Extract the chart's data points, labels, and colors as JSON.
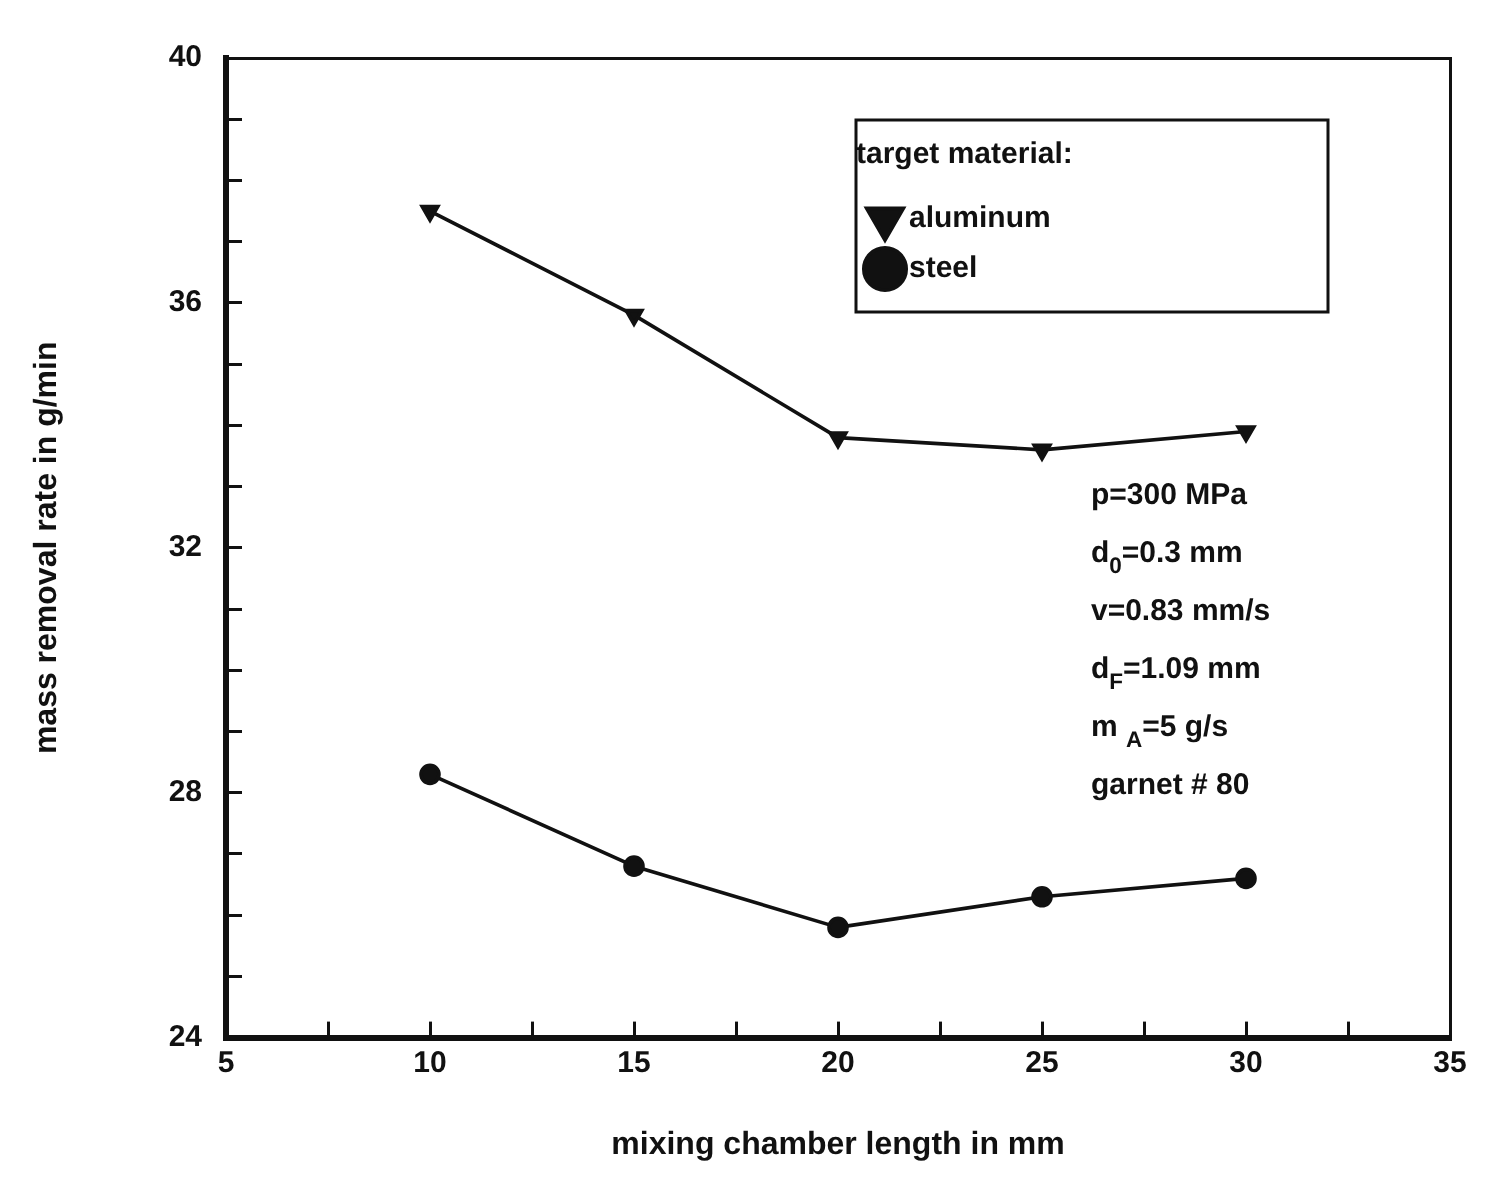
{
  "chart_data": {
    "type": "line",
    "xlabel": "mixing chamber length in mm",
    "ylabel": "mass removal rate in g/min",
    "legend_title": "target material:",
    "legend": "top right",
    "grid": false,
    "line_style": "solid",
    "x": [
      10,
      15,
      20,
      25,
      30
    ],
    "series": [
      {
        "name": "aluminum",
        "color": "#111111",
        "marker": "triangle",
        "values": [
          37.5,
          35.8,
          33.8,
          33.6,
          33.9
        ]
      },
      {
        "name": "steel",
        "color": "#111111",
        "marker": "circle",
        "values": [
          28.3,
          26.8,
          25.8,
          26.3,
          26.6
        ]
      }
    ],
    "xlim": [
      5,
      35
    ],
    "xticks": [
      5,
      {
        "value": 7.5,
        "label": null
      },
      10,
      {
        "value": 12.5,
        "label": null
      },
      15,
      {
        "value": 17.5,
        "label": null
      },
      20,
      {
        "value": 22.5,
        "label": null
      },
      25,
      {
        "value": 27.5,
        "label": null
      },
      30,
      {
        "value": 32.5,
        "label": null
      },
      35
    ],
    "ylim": [
      24,
      40
    ],
    "yticks": [
      24,
      {
        "value": 25,
        "label": null
      },
      {
        "value": 26,
        "label": null
      },
      {
        "value": 27,
        "label": null
      },
      28,
      {
        "value": 29,
        "label": null
      },
      {
        "value": 30,
        "label": null
      },
      {
        "value": 31,
        "label": null
      },
      32,
      {
        "value": 33,
        "label": null
      },
      {
        "value": 34,
        "label": null
      },
      {
        "value": 35,
        "label": null
      },
      36,
      {
        "value": 37,
        "label": null
      },
      {
        "value": 38,
        "label": null
      },
      {
        "value": 39,
        "label": null
      },
      40
    ],
    "annotations": [
      "p=300 MPa",
      "d$_{0}$=0.3 mm",
      "v=0.83 mm/s",
      "d$_{F}$=1.09 mm",
      "m $_{A}$=5 g/s",
      "garnet # 80"
    ]
  }
}
